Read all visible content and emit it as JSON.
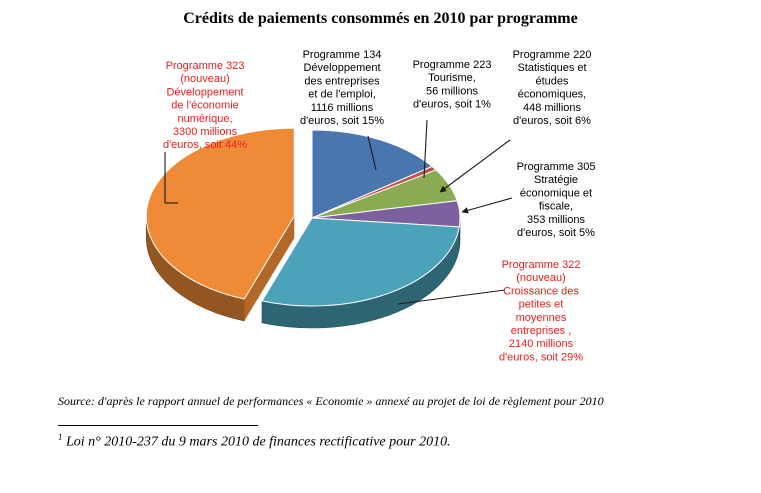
{
  "chart_data": {
    "type": "pie",
    "title": "Crédits de paiements consommés en 2010 par programme",
    "slices": [
      {
        "id": "p134",
        "value": 1116,
        "percent": 15,
        "color": "#4a76b0",
        "labelColor": "#000000",
        "label": [
          "Programme 134",
          "Développement",
          "des entreprises",
          "et de l'emploi,",
          "1116  millions",
          "d'euros, soit 15%"
        ]
      },
      {
        "id": "p223",
        "value": 56,
        "percent": 1,
        "color": "#c0504d",
        "labelColor": "#000000",
        "label": [
          "Programme 223",
          "Tourisme,",
          "56 millions",
          "d'euros, soit 1%"
        ]
      },
      {
        "id": "p220",
        "value": 448,
        "percent": 6,
        "color": "#8aab52",
        "labelColor": "#000000",
        "label": [
          "Programme 220",
          "Statistiques et",
          "études",
          "économiques,",
          "448  millions",
          "d'euros, soit 6%"
        ]
      },
      {
        "id": "p305",
        "value": 353,
        "percent": 5,
        "color": "#7d60a0",
        "labelColor": "#000000",
        "label": [
          "Programme 305",
          "Stratégie",
          "économique et",
          "fiscale,",
          "353 millions",
          "d'euros, soit 5%"
        ]
      },
      {
        "id": "p322",
        "value": 2140,
        "percent": 29,
        "color": "#4aa3b9",
        "labelColor": "#e8201c",
        "label": [
          "Programme 322",
          "(nouveau)",
          "Croissance des",
          "petites et",
          "moyennes",
          "entreprises ,",
          "2140  millions",
          "d'euros, soit 29%"
        ]
      },
      {
        "id": "p323",
        "value": 3300,
        "percent": 44,
        "color": "#ef8a36",
        "labelColor": "#e8201c",
        "label": [
          "Programme 323",
          "(nouveau)",
          "Développement",
          "de l'économie",
          "numérique,",
          "3300 millions",
          "d'euros, soit 44%"
        ]
      }
    ]
  },
  "source": "Source: d'après le rapport annuel de performances « Economie » annexé au projet de loi de règlement pour 2010",
  "footnote": {
    "marker": "1",
    "text": " Loi n° 2010-237 du 9 mars 2010 de finances rectificative pour 2010."
  }
}
